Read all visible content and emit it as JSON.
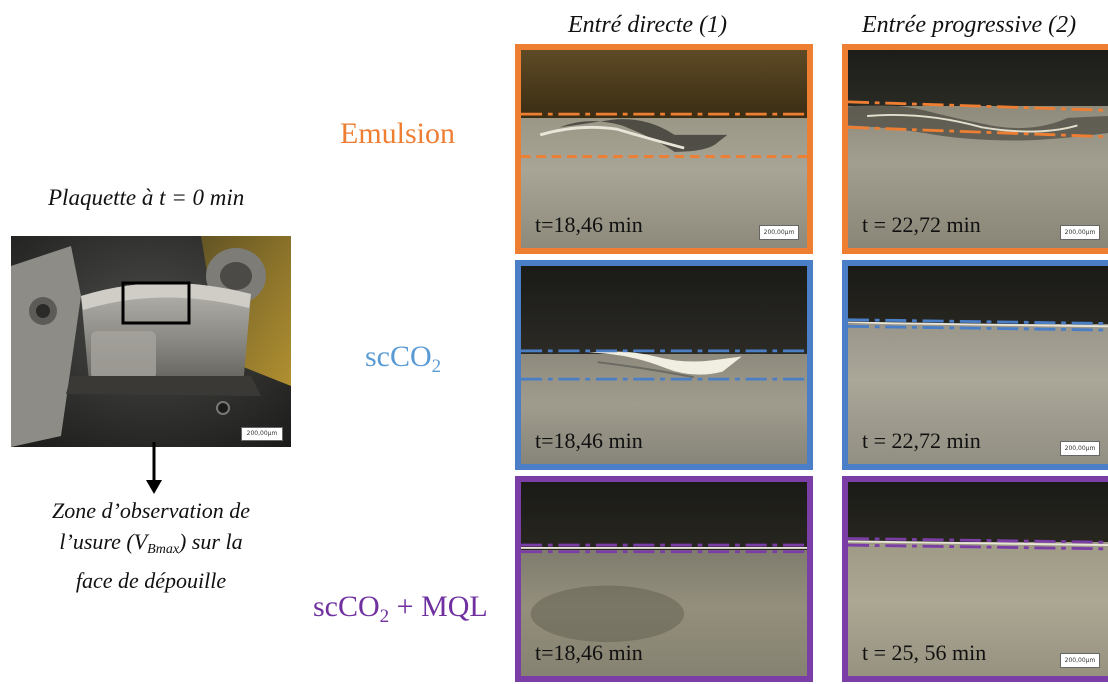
{
  "columns": {
    "direct": "Entré directe (1)",
    "progressive": "Entrée progressive (2)"
  },
  "insert": {
    "title": "Plaquette à t = 0 min",
    "scale": "200,00µm",
    "caption_line1": "Zone d’observation de",
    "caption_prefix": "l’usure (V",
    "caption_sub": "Bmax",
    "caption_suffix": ") sur la",
    "caption_line3": "face de dépouille"
  },
  "rows": [
    {
      "label_main": "Emulsion",
      "label_sub": "",
      "label_suffix": "",
      "color": "#EE7E32",
      "panels": [
        {
          "time": "t=18,46 min",
          "scale": "200,00µm"
        },
        {
          "time": "t = 22,72 min",
          "scale": "200,00µm"
        }
      ]
    },
    {
      "label_main": "scCO",
      "label_sub": "2",
      "label_suffix": "",
      "color": "#4A7EC6",
      "panels": [
        {
          "time": "t=18,46 min",
          "scale": ""
        },
        {
          "time": "t = 22,72 min",
          "scale": "200,00µm"
        }
      ]
    },
    {
      "label_main": "scCO",
      "label_sub": "2",
      "label_suffix": " + MQL",
      "color": "#7B3DA6",
      "panels": [
        {
          "time": "t=18,46 min",
          "scale": ""
        },
        {
          "time": "t = 25, 56 min",
          "scale": "200,00µm"
        }
      ]
    }
  ],
  "colors": {
    "emulsion": "#EE7E32",
    "scco2": "#4A7EC6",
    "scco2_mql": "#7B3DA6",
    "label_scco2_text": "#5B9BD5",
    "label_mql_text": "#7030A0"
  }
}
